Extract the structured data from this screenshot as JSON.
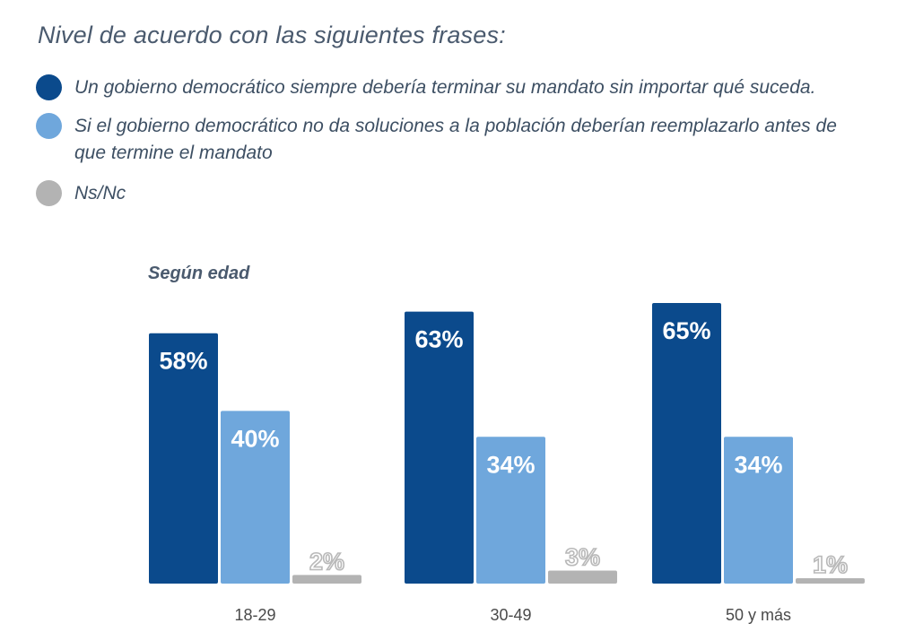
{
  "title": "Nivel de acuerdo con las siguientes frases:",
  "legend": [
    {
      "label": "Un gobierno democrático siempre debería terminar su mandato sin importar qué suceda.",
      "color": "#0b4a8c"
    },
    {
      "label": "Si el gobierno democrático no da soluciones a la población deberían reemplazarlo antes de que termine el mandato",
      "color": "#6fa7dc"
    },
    {
      "label": "Ns/Nc",
      "color": "#b3b3b3"
    }
  ],
  "subtitle": "Según edad",
  "chart_data": {
    "type": "bar",
    "categories": [
      "18-29",
      "30-49",
      "50 y más"
    ],
    "series": [
      {
        "values": [
          58,
          63,
          65
        ],
        "labels": [
          "58%",
          "63%",
          "65%"
        ],
        "color": "#0b4a8c"
      },
      {
        "values": [
          40,
          34,
          34
        ],
        "labels": [
          "40%",
          "34%",
          "34%"
        ],
        "color": "#6fa7dc"
      },
      {
        "values": [
          2,
          3,
          1
        ],
        "labels": [
          "2%",
          "3%",
          "1%"
        ],
        "color": "#b3b3b3"
      }
    ],
    "ylim": [
      0,
      65
    ]
  }
}
